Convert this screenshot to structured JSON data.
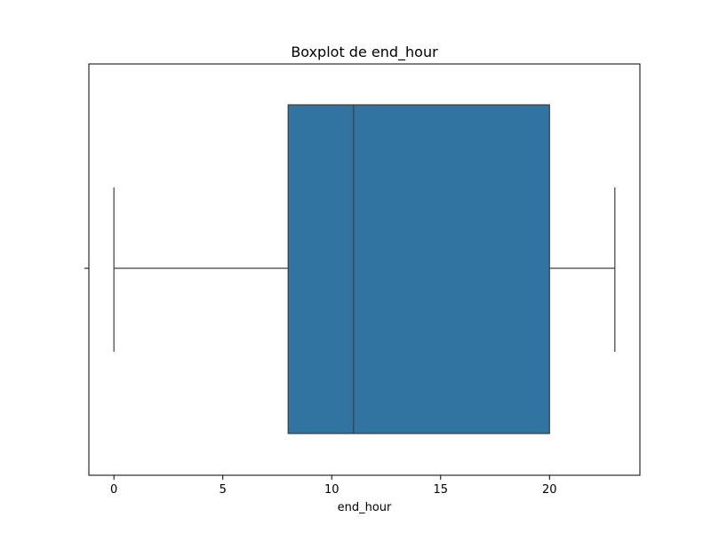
{
  "chart_data": {
    "type": "boxplot",
    "title": "Boxplot de end_hour",
    "xlabel": "end_hour",
    "ylabel": "",
    "orientation": "horizontal",
    "xlim": [
      -1.15,
      24.15
    ],
    "xticks": [
      0,
      5,
      10,
      15,
      20
    ],
    "xtick_labels": [
      "0",
      "5",
      "10",
      "15",
      "20"
    ],
    "grid": false,
    "legend": "none",
    "series": [
      {
        "min": 0,
        "q1": 8,
        "median": 11,
        "q3": 20,
        "max": 23
      }
    ],
    "colors": {
      "box_fill": "#3274a1",
      "line": "#3d3d3d",
      "axis": "#000000"
    }
  }
}
